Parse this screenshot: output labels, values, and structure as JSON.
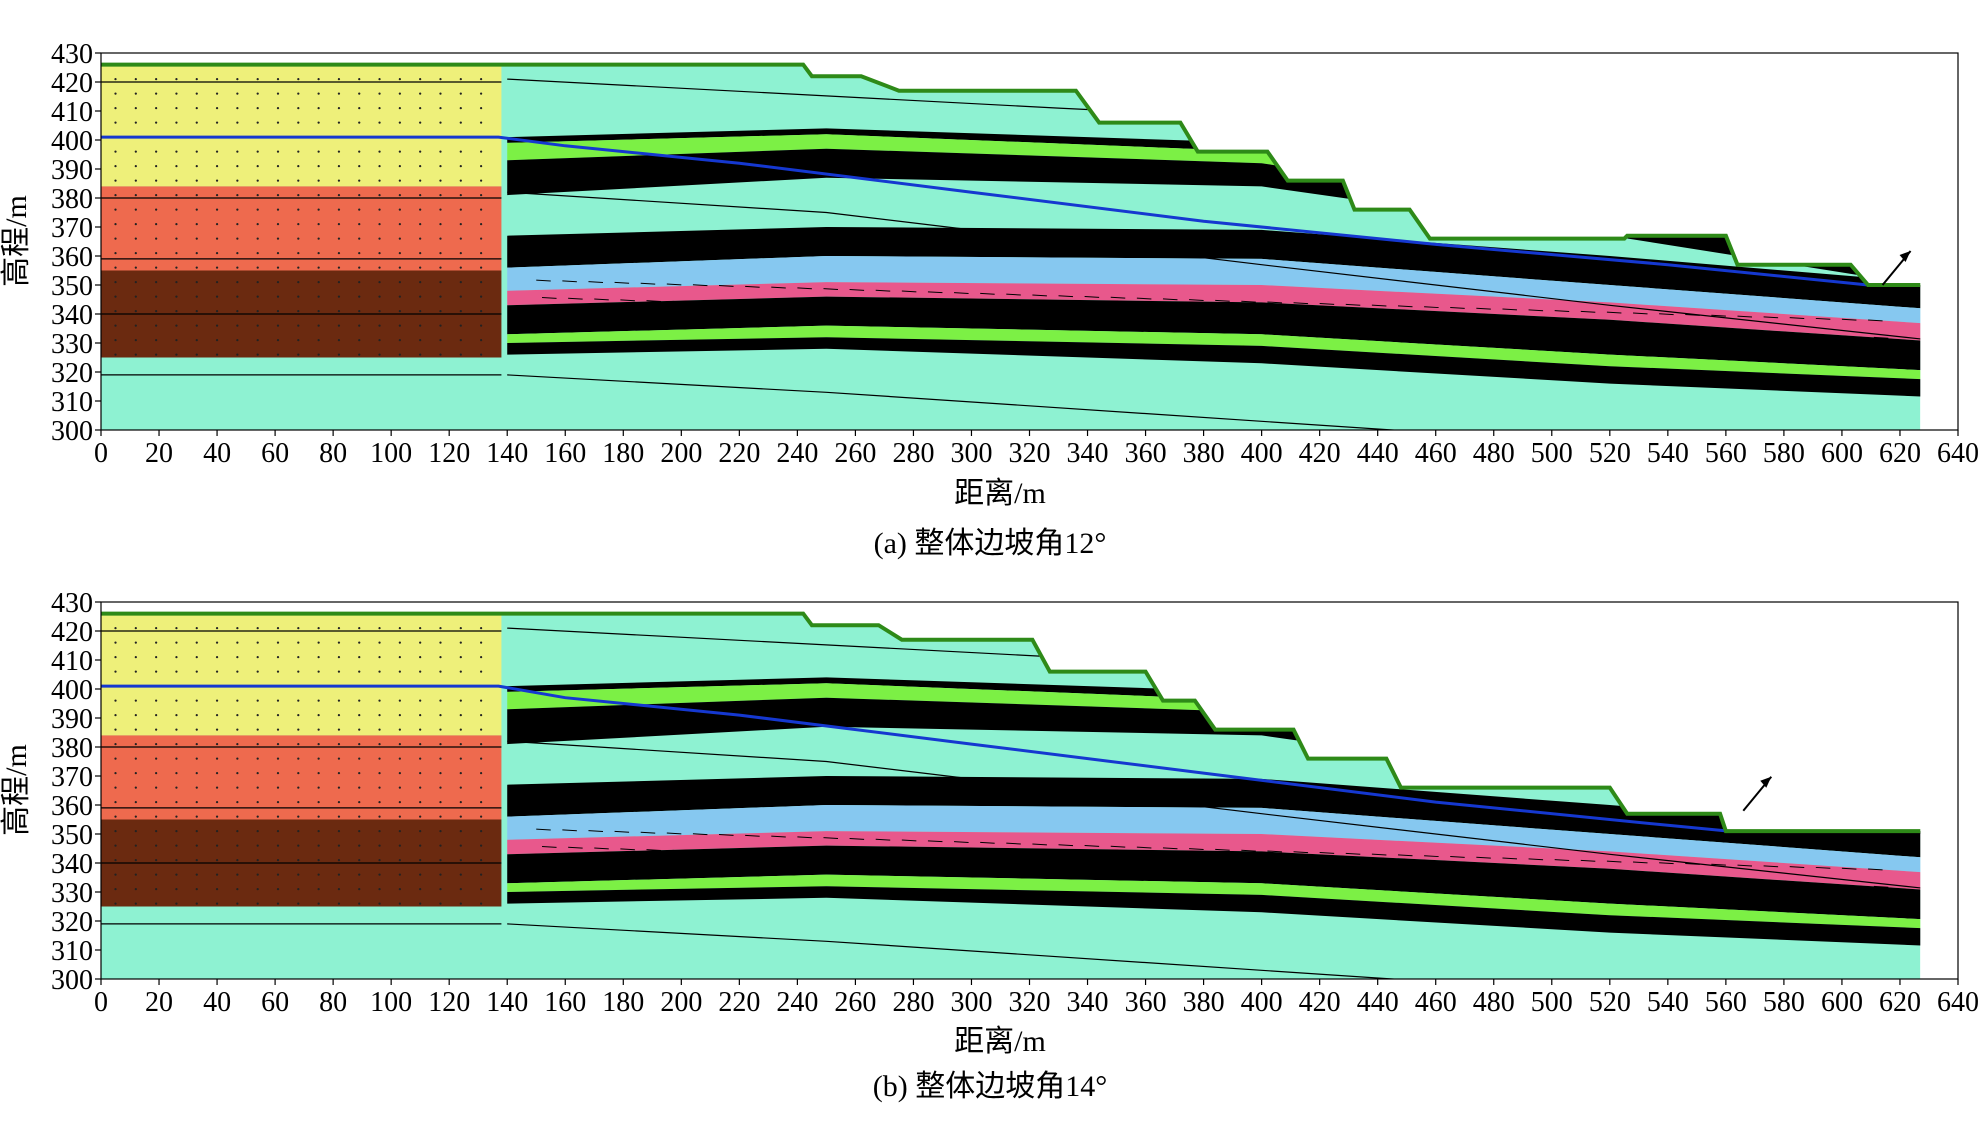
{
  "panels": [
    {
      "caption": "(a) 整体边坡角12°",
      "xlabel": "距离/m",
      "ylabel": "高程/m",
      "ymin": 300,
      "ymax": 430,
      "xmin": 0,
      "xmax": 640,
      "xticks": [
        0,
        20,
        40,
        60,
        80,
        100,
        120,
        140,
        160,
        180,
        200,
        220,
        240,
        260,
        280,
        300,
        320,
        340,
        360,
        380,
        400,
        420,
        440,
        460,
        480,
        500,
        520,
        540,
        560,
        580,
        600,
        620,
        640
      ],
      "yticks": [
        300,
        310,
        320,
        330,
        340,
        350,
        360,
        370,
        380,
        390,
        400,
        410,
        420,
        430
      ],
      "slope_profile": [
        [
          0,
          426
        ],
        [
          242,
          426
        ],
        [
          245,
          422
        ],
        [
          262,
          422
        ],
        [
          275,
          417
        ],
        [
          336,
          417
        ],
        [
          344,
          406
        ],
        [
          372,
          406
        ],
        [
          378,
          396
        ],
        [
          402,
          396
        ],
        [
          409,
          386
        ],
        [
          428,
          386
        ],
        [
          432,
          376
        ],
        [
          451,
          376
        ],
        [
          458,
          366
        ],
        [
          525,
          366
        ],
        [
          526,
          367
        ],
        [
          560,
          367
        ],
        [
          564,
          357
        ],
        [
          603,
          357
        ],
        [
          609,
          350
        ],
        [
          627,
          350
        ]
      ],
      "water_table": [
        [
          0,
          401
        ],
        [
          137,
          401
        ],
        [
          160,
          398
        ],
        [
          220,
          392
        ],
        [
          300,
          382
        ],
        [
          380,
          372
        ],
        [
          460,
          364
        ],
        [
          540,
          357
        ],
        [
          609,
          350
        ]
      ],
      "movement_vector_at": [
        614,
        350
      ]
    },
    {
      "caption": "(b) 整体边坡角14°",
      "xlabel": "距离/m",
      "ylabel": "高程/m",
      "ymin": 300,
      "ymax": 430,
      "xmin": 0,
      "xmax": 640,
      "xticks": [
        0,
        20,
        40,
        60,
        80,
        100,
        120,
        140,
        160,
        180,
        200,
        220,
        240,
        260,
        280,
        300,
        320,
        340,
        360,
        380,
        400,
        420,
        440,
        460,
        480,
        500,
        520,
        540,
        560,
        580,
        600,
        620,
        640
      ],
      "yticks": [
        300,
        310,
        320,
        330,
        340,
        350,
        360,
        370,
        380,
        390,
        400,
        410,
        420,
        430
      ],
      "slope_profile": [
        [
          0,
          426
        ],
        [
          242,
          426
        ],
        [
          245,
          422
        ],
        [
          268,
          422
        ],
        [
          276,
          417
        ],
        [
          321,
          417
        ],
        [
          327,
          406
        ],
        [
          360,
          406
        ],
        [
          366,
          396
        ],
        [
          377,
          396
        ],
        [
          384,
          386
        ],
        [
          411,
          386
        ],
        [
          416,
          376
        ],
        [
          443,
          376
        ],
        [
          448,
          366
        ],
        [
          520,
          366
        ],
        [
          526,
          357
        ],
        [
          558,
          357
        ],
        [
          560,
          351
        ],
        [
          627,
          351
        ]
      ],
      "water_table": [
        [
          0,
          401
        ],
        [
          137,
          401
        ],
        [
          160,
          397
        ],
        [
          220,
          391
        ],
        [
          300,
          381
        ],
        [
          380,
          371
        ],
        [
          460,
          361
        ],
        [
          540,
          353
        ],
        [
          561,
          351
        ]
      ],
      "movement_vector_at": [
        566,
        358
      ]
    }
  ],
  "colors": {
    "yellow_zone": "#eef07a",
    "orange_zone": "#ee6a4e",
    "brown_zone": "#6b2a10",
    "aqua_layer": "#8ef2d2",
    "green_layer": "#7cf045",
    "black_layer": "#000000",
    "blue_layer": "#86c8f0",
    "pink_layer": "#e8588c",
    "surface_line": "#2e8a18",
    "water_line": "#1538d0"
  }
}
